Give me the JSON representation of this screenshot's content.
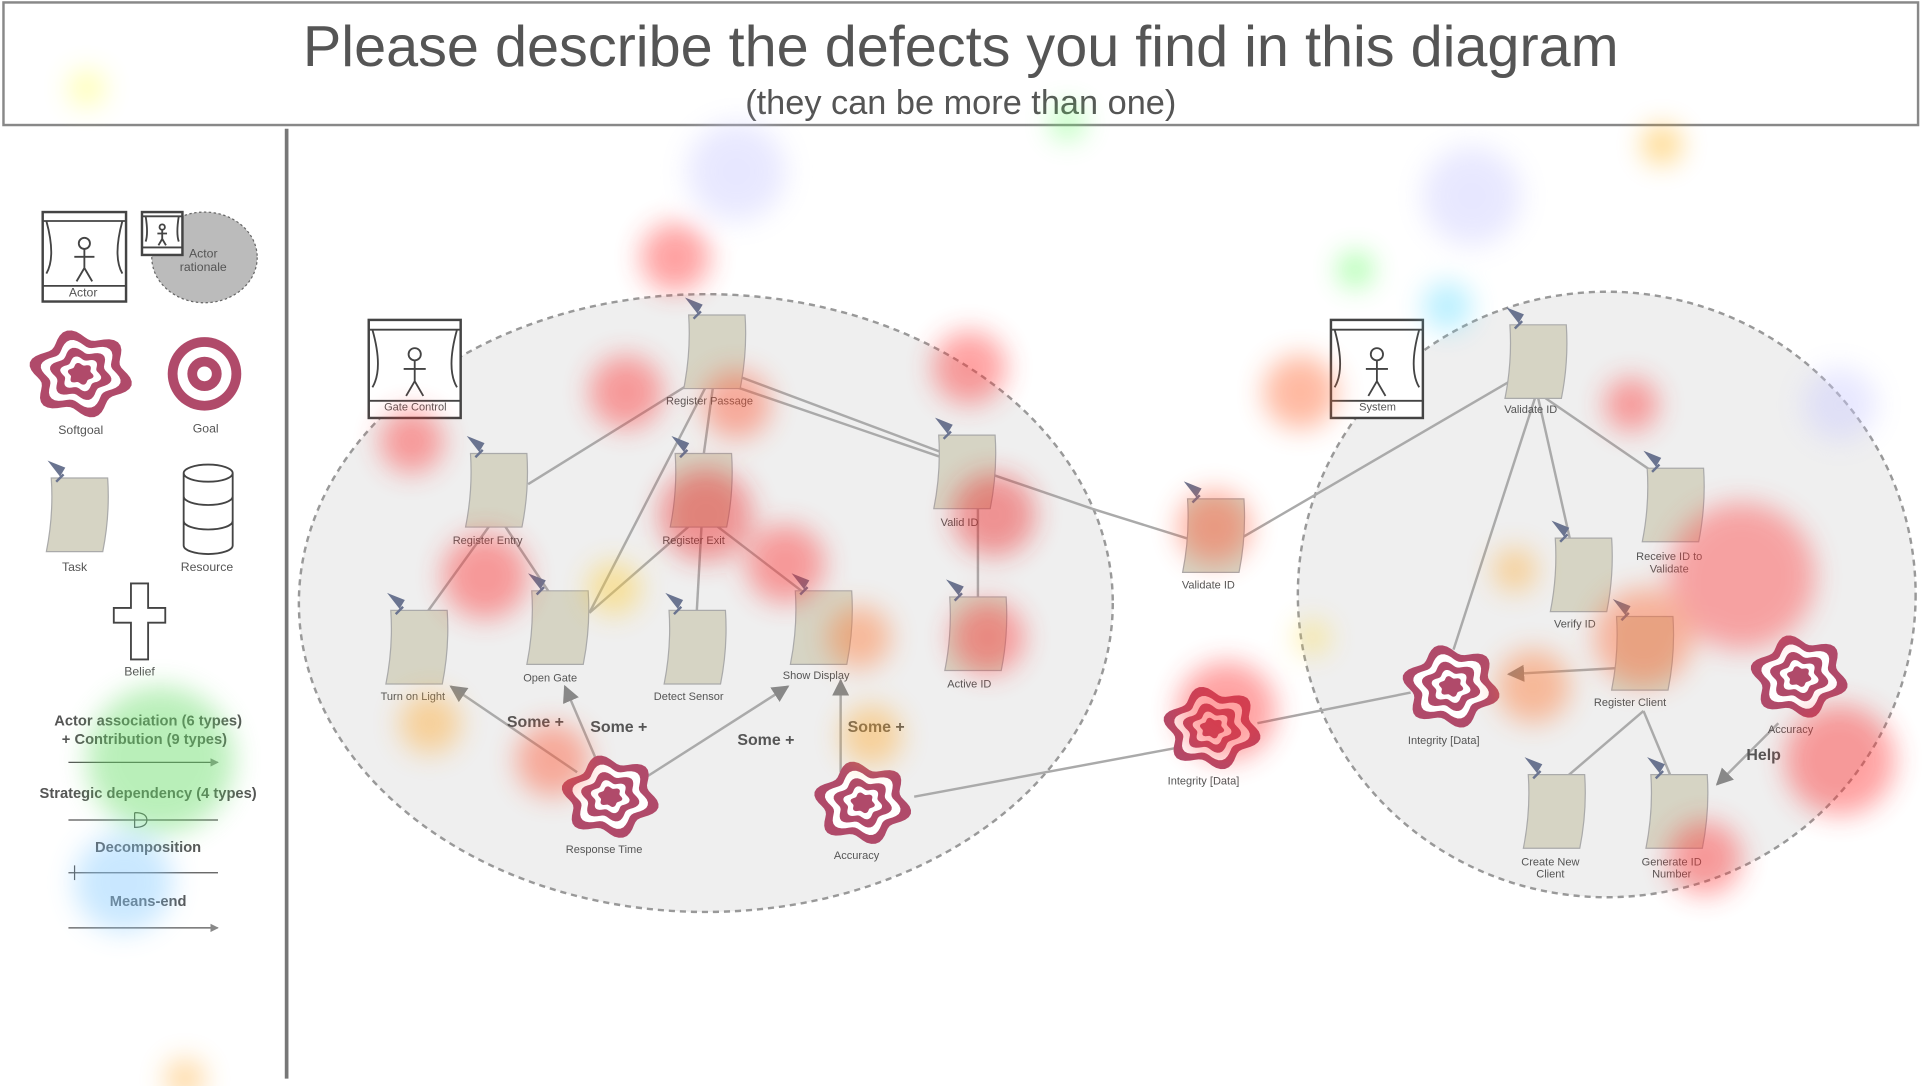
{
  "header": {
    "title": "Please describe the defects you find in this diagram",
    "subtitle": "(they can be more than one)"
  },
  "legend": {
    "elements": [
      "Actor",
      [
        "Actor",
        "rationale"
      ],
      "Softgoal",
      "Goal",
      "Task",
      "Resource",
      "Belief"
    ],
    "links": [
      "Actor association (6 types)",
      "+ Contribution (9 types)",
      "Strategic dependency (4 types)",
      "Decomposition",
      "Means-end"
    ]
  },
  "actors": [
    "Gate Control",
    "System"
  ],
  "tasks": [
    "Register Passage",
    "Register Entry",
    "Register Exit",
    "Valid ID",
    "Turn on Light",
    "Open Gate",
    "Detect Sensor",
    "Show Display",
    "Active ID",
    "Validate ID",
    "Validate ID",
    [
      "Receive ID to",
      "Validate"
    ],
    "Verify ID",
    "Register Client",
    [
      "Create New",
      "Client"
    ],
    [
      "Generate ID",
      "Number"
    ]
  ],
  "softgoals": [
    "Response Time",
    "Accuracy",
    "Integrity [Data]",
    "Integrity [Data]",
    "Accuracy"
  ],
  "contributions": [
    "Some +",
    "Some +",
    "Some +",
    "Some +",
    "Help"
  ]
}
